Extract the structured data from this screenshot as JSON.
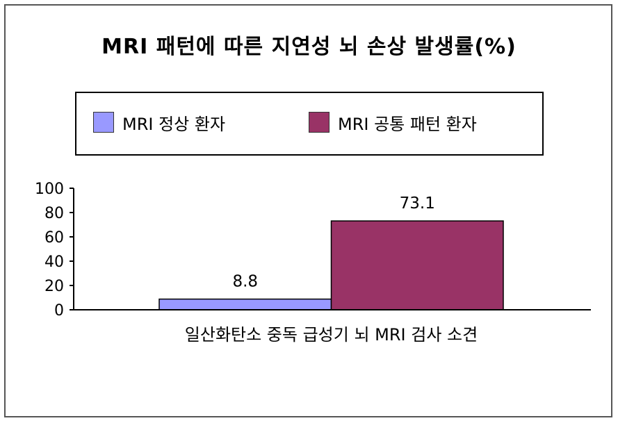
{
  "chart_data": {
    "type": "bar",
    "title": "MRI 패턴에 따른 지연성 뇌 손상 발생률(%)",
    "categories": [
      "일산화탄소 중독 급성기 뇌 MRI 검사 소견"
    ],
    "series": [
      {
        "name": "MRI 정상 환자",
        "values": [
          8.8
        ],
        "color": "#9999ff"
      },
      {
        "name": "MRI 공통 패턴 환자",
        "values": [
          73.1
        ],
        "color": "#993366"
      }
    ],
    "data_labels": [
      "8.8",
      "73.1"
    ],
    "ylim": [
      0,
      100
    ],
    "yticks": [
      0,
      20,
      40,
      60,
      80,
      100
    ],
    "grid": false,
    "legend_position": "top"
  }
}
